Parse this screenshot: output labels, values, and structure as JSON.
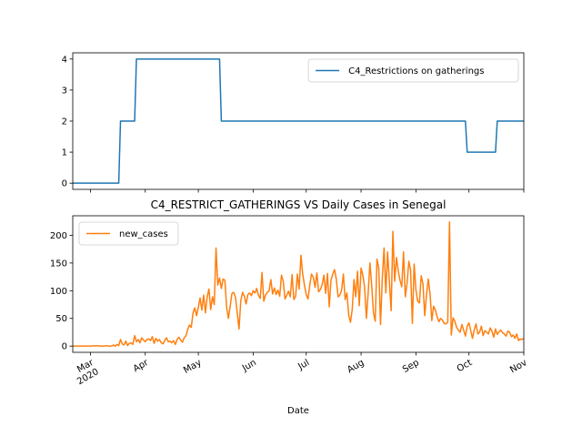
{
  "chart_data": [
    {
      "type": "line",
      "x": [
        0,
        26,
        27,
        35,
        36,
        83,
        84,
        222,
        223,
        239,
        240,
        255
      ],
      "series": [
        {
          "name": "C4_Restrictions on gatherings",
          "color": "#1f77b4",
          "values": [
            0,
            0,
            2,
            2,
            4,
            4,
            2,
            2,
            1,
            1,
            2,
            2
          ]
        }
      ],
      "xlim": [
        0,
        255
      ],
      "xticks": [
        10,
        41,
        71,
        102,
        132,
        163,
        194,
        224,
        255
      ],
      "ylim": [
        -0.2,
        4.2
      ],
      "yticks": [
        0,
        1,
        2,
        3,
        4
      ],
      "legend": "upper right"
    },
    {
      "type": "line",
      "title": "C4_RESTRICT_GATHERINGS VS Daily Cases in Senegal",
      "xlabel": "Date",
      "x": [
        0,
        1,
        2,
        3,
        4,
        5,
        6,
        7,
        8,
        9,
        10,
        11,
        12,
        13,
        14,
        15,
        16,
        17,
        18,
        19,
        20,
        21,
        22,
        23,
        24,
        25,
        26,
        27,
        28,
        29,
        30,
        31,
        32,
        33,
        34,
        35,
        36,
        37,
        38,
        39,
        40,
        41,
        42,
        43,
        44,
        45,
        46,
        47,
        48,
        49,
        50,
        51,
        52,
        53,
        54,
        55,
        56,
        57,
        58,
        59,
        60,
        61,
        62,
        63,
        64,
        65,
        66,
        67,
        68,
        69,
        70,
        71,
        72,
        73,
        74,
        75,
        76,
        77,
        78,
        79,
        80,
        81,
        82,
        83,
        84,
        85,
        86,
        87,
        88,
        89,
        90,
        91,
        92,
        93,
        94,
        95,
        96,
        97,
        98,
        99,
        100,
        101,
        102,
        103,
        104,
        105,
        106,
        107,
        108,
        109,
        110,
        111,
        112,
        113,
        114,
        115,
        116,
        117,
        118,
        119,
        120,
        121,
        122,
        123,
        124,
        125,
        126,
        127,
        128,
        129,
        130,
        131,
        132,
        133,
        134,
        135,
        136,
        137,
        138,
        139,
        140,
        141,
        142,
        143,
        144,
        145,
        146,
        147,
        148,
        149,
        150,
        151,
        152,
        153,
        154,
        155,
        156,
        157,
        158,
        159,
        160,
        161,
        162,
        163,
        164,
        165,
        166,
        167,
        168,
        169,
        170,
        171,
        172,
        173,
        174,
        175,
        176,
        177,
        178,
        179,
        180,
        181,
        182,
        183,
        184,
        185,
        186,
        187,
        188,
        189,
        190,
        191,
        192,
        193,
        194,
        195,
        196,
        197,
        198,
        199,
        200,
        201,
        202,
        203,
        204,
        205,
        206,
        207,
        208,
        209,
        210,
        211,
        212,
        213,
        214,
        215,
        216,
        217,
        218,
        219,
        220,
        221,
        222,
        223,
        224,
        225,
        226,
        227,
        228,
        229,
        230,
        231,
        232,
        233,
        234,
        235,
        236,
        237,
        238,
        239,
        240,
        241,
        242,
        243,
        244,
        245,
        246,
        247,
        248,
        249,
        250,
        251,
        252,
        253,
        254,
        255
      ],
      "series": [
        {
          "name": "new_cases",
          "color": "#ff7f0e",
          "values": [
            0,
            0,
            0,
            0,
            0,
            0,
            0,
            0,
            0,
            0,
            0,
            0,
            1,
            0,
            1,
            0,
            0,
            0,
            0,
            1,
            0,
            0,
            0,
            2,
            0,
            3,
            1,
            12,
            4,
            2,
            9,
            1,
            5,
            6,
            3,
            19,
            8,
            12,
            6,
            15,
            11,
            8,
            12,
            13,
            10,
            17,
            5,
            14,
            9,
            12,
            6,
            4,
            10,
            15,
            8,
            9,
            6,
            10,
            3,
            12,
            16,
            11,
            7,
            15,
            19,
            30,
            38,
            34,
            60,
            69,
            55,
            70,
            87,
            65,
            92,
            60,
            89,
            103,
            66,
            89,
            75,
            177,
            110,
            123,
            104,
            121,
            119,
            70,
            50,
            72,
            95,
            97,
            88,
            60,
            31,
            82,
            97,
            90,
            76,
            93,
            96,
            91,
            100,
            96,
            104,
            92,
            86,
            133,
            81,
            92,
            97,
            100,
            120,
            94,
            105,
            93,
            101,
            90,
            128,
            117,
            85,
            92,
            99,
            89,
            129,
            84,
            90,
            130,
            103,
            164,
            130,
            110,
            93,
            85,
            110,
            130,
            124,
            106,
            132,
            98,
            102,
            111,
            128,
            95,
            131,
            71,
            119,
            130,
            138,
            121,
            89,
            92,
            101,
            130,
            84,
            96,
            56,
            43,
            66,
            120,
            89,
            135,
            73,
            141,
            128,
            106,
            50,
            95,
            150,
            110,
            60,
            45,
            157,
            141,
            39,
            122,
            177,
            96,
            170,
            116,
            64,
            207,
            117,
            160,
            136,
            119,
            107,
            170,
            89,
            113,
            153,
            137,
            41,
            148,
            102,
            81,
            78,
            127,
            112,
            55,
            93,
            121,
            94,
            46,
            72,
            65,
            53,
            44,
            50,
            47,
            41,
            40,
            43,
            224,
            20,
            51,
            45,
            34,
            29,
            25,
            39,
            29,
            18,
            36,
            42,
            28,
            14,
            30,
            40,
            22,
            25,
            36,
            19,
            28,
            25,
            22,
            33,
            27,
            16,
            31,
            21,
            26,
            29,
            24,
            22,
            18,
            27,
            25,
            17,
            20,
            14,
            22,
            10,
            13,
            12,
            14
          ]
        }
      ],
      "xlim": [
        0,
        255
      ],
      "xticks": [
        {
          "value": 10,
          "label": "Mar\n2020"
        },
        {
          "value": 41,
          "label": "Apr"
        },
        {
          "value": 71,
          "label": "May"
        },
        {
          "value": 102,
          "label": "Jun"
        },
        {
          "value": 132,
          "label": "Jul"
        },
        {
          "value": 163,
          "label": "Aug"
        },
        {
          "value": 194,
          "label": "Sep"
        },
        {
          "value": 224,
          "label": "Oct"
        },
        {
          "value": 255,
          "label": "Nov"
        }
      ],
      "ylim": [
        -11.2,
        235.2
      ],
      "yticks": [
        0,
        50,
        100,
        150,
        200
      ],
      "legend": "upper left"
    }
  ]
}
